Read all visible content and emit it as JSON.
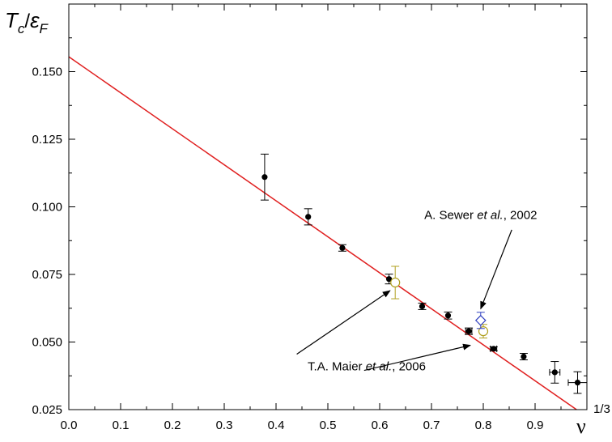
{
  "chart_data": {
    "type": "scatter",
    "ylabel": {
      "main": "T",
      "sub": "c",
      "sep": "/",
      "main2": "ε",
      "sub2": "F"
    },
    "xlabel": {
      "main": "ν",
      "sup": "1/3"
    },
    "xlim": [
      0.0,
      1.0
    ],
    "ylim": [
      0.025,
      0.175
    ],
    "x_ticks": [
      0.0,
      0.1,
      0.2,
      0.3,
      0.4,
      0.5,
      0.6,
      0.7,
      0.8,
      0.9
    ],
    "x_tick_labels": [
      "0.0",
      "0.1",
      "0.2",
      "0.3",
      "0.4",
      "0.5",
      "0.6",
      "0.7",
      "0.8",
      "0.9"
    ],
    "y_ticks": [
      0.025,
      0.05,
      0.075,
      0.1,
      0.125,
      0.15
    ],
    "y_tick_labels": [
      "0.025",
      "0.050",
      "0.075",
      "0.100",
      "0.125",
      "0.150"
    ],
    "grid": false,
    "fit_line": {
      "color": "#e02020",
      "x": [
        0.0,
        0.98
      ],
      "y": [
        0.1555,
        0.025
      ]
    },
    "series": [
      {
        "marker": "filled-circle",
        "color": "#000000",
        "points": [
          {
            "x": 0.378,
            "y": 0.111,
            "yerr": 0.0085,
            "xerr": 0
          },
          {
            "x": 0.462,
            "y": 0.0963,
            "yerr": 0.003,
            "xerr": 0
          },
          {
            "x": 0.528,
            "y": 0.0848,
            "yerr": 0.0012,
            "xerr": 0
          },
          {
            "x": 0.618,
            "y": 0.0733,
            "yerr": 0.0018,
            "xerr": 0
          },
          {
            "x": 0.682,
            "y": 0.0632,
            "yerr": 0.0012,
            "xerr": 0
          },
          {
            "x": 0.732,
            "y": 0.0598,
            "yerr": 0.0013,
            "xerr": 0
          },
          {
            "x": 0.772,
            "y": 0.054,
            "yerr": 0.0012,
            "xerr": 0.006
          },
          {
            "x": 0.82,
            "y": 0.0475,
            "yerr": 0.0007,
            "xerr": 0.006
          },
          {
            "x": 0.878,
            "y": 0.0446,
            "yerr": 0.0012,
            "xerr": 0
          },
          {
            "x": 0.938,
            "y": 0.0388,
            "yerr": 0.004,
            "xerr": 0.01
          },
          {
            "x": 0.982,
            "y": 0.035,
            "yerr": 0.004,
            "xerr": 0.018
          }
        ]
      },
      {
        "marker": "open-circle",
        "color": "#b0a020",
        "points": [
          {
            "x": 0.63,
            "y": 0.072,
            "yerr": 0.006,
            "xerr": 0
          },
          {
            "x": 0.8,
            "y": 0.054,
            "yerr": 0.0025,
            "xerr": 0
          }
        ]
      },
      {
        "marker": "open-diamond",
        "color": "#3040c0",
        "points": [
          {
            "x": 0.795,
            "y": 0.058,
            "yerr": 0.003,
            "xerr": 0
          }
        ]
      }
    ],
    "annotations": [
      {
        "label_parts": [
          "A. Sewer ",
          "et al.",
          ", 2002"
        ],
        "label_x": 0.795,
        "label_y": 0.0955,
        "arrow_from": [
          0.855,
          0.0915
        ],
        "arrow_to": [
          0.795,
          0.0623
        ]
      },
      {
        "label_parts": [
          "T.A. Maier ",
          "et al.",
          ",  2006"
        ],
        "label_x": 0.575,
        "label_y": 0.0395,
        "arrow_from": [
          0.44,
          0.0455
        ],
        "arrow_to": [
          0.62,
          0.069
        ]
      },
      {
        "label_parts": [
          "",
          "",
          ""
        ],
        "label_x": 0,
        "label_y": 0,
        "arrow_from": [
          0.57,
          0.0395
        ],
        "arrow_to": [
          0.775,
          0.0488
        ]
      }
    ]
  }
}
